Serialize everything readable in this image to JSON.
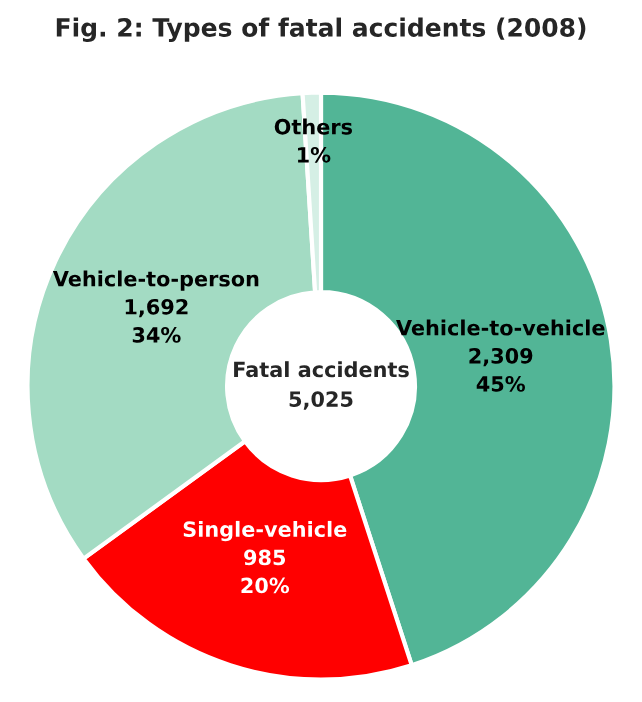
{
  "chart_data": {
    "type": "donut",
    "title": "Fig. 2: Types of fatal accidents (2008)",
    "categories": [
      "Vehicle-to-vehicle",
      "Single-vehicle",
      "Vehicle-to-person",
      "Others"
    ],
    "values": [
      45,
      20,
      34,
      1
    ],
    "colors": [
      "#52b596",
      "#ff0000",
      "#a3dbc3",
      "#d5efe5"
    ],
    "value_labels": [
      "2,309\n45%",
      "985\n20%",
      "1,692\n34%",
      "1%"
    ],
    "annotations": [
      "Fatal accidents\n5,025"
    ],
    "legend": false
  }
}
